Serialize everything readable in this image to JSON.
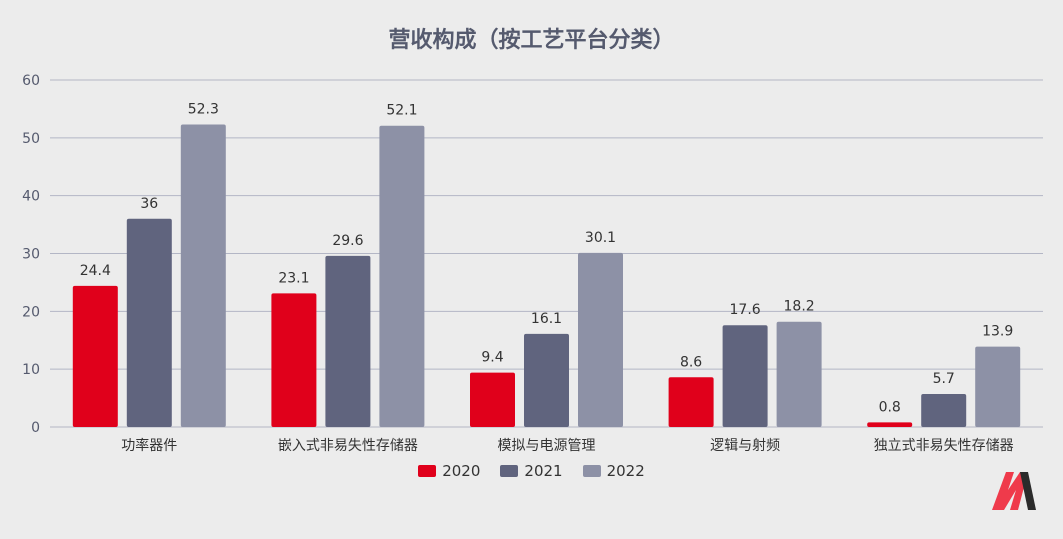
{
  "colors": {
    "series_2020": "#e0001b",
    "series_2021": "#60647e",
    "series_2022": "#8d91a6",
    "grid": "#b3b6c5",
    "logo_red": "#ef3a4b",
    "logo_dark": "#2b2b2b"
  },
  "icons": {
    "logo": "brand-logo-m"
  },
  "chart_data": {
    "type": "bar",
    "title": "营收构成（按工艺平台分类）",
    "xlabel": "",
    "ylabel": "",
    "ylim": [
      0,
      60
    ],
    "yticks": [
      0,
      10,
      20,
      30,
      40,
      50,
      60
    ],
    "grid": true,
    "legend_position": "bottom",
    "categories": [
      "功率器件",
      "嵌入式非易失性存储器",
      "模拟与电源管理",
      "逻辑与射频",
      "独立式非易失性存储器"
    ],
    "series": [
      {
        "name": "2020",
        "values": [
          24.4,
          23.1,
          9.4,
          8.6,
          0.8
        ]
      },
      {
        "name": "2021",
        "values": [
          36,
          29.6,
          16.1,
          17.6,
          5.7
        ]
      },
      {
        "name": "2022",
        "values": [
          52.3,
          52.1,
          30.1,
          18.2,
          13.9
        ]
      }
    ]
  }
}
